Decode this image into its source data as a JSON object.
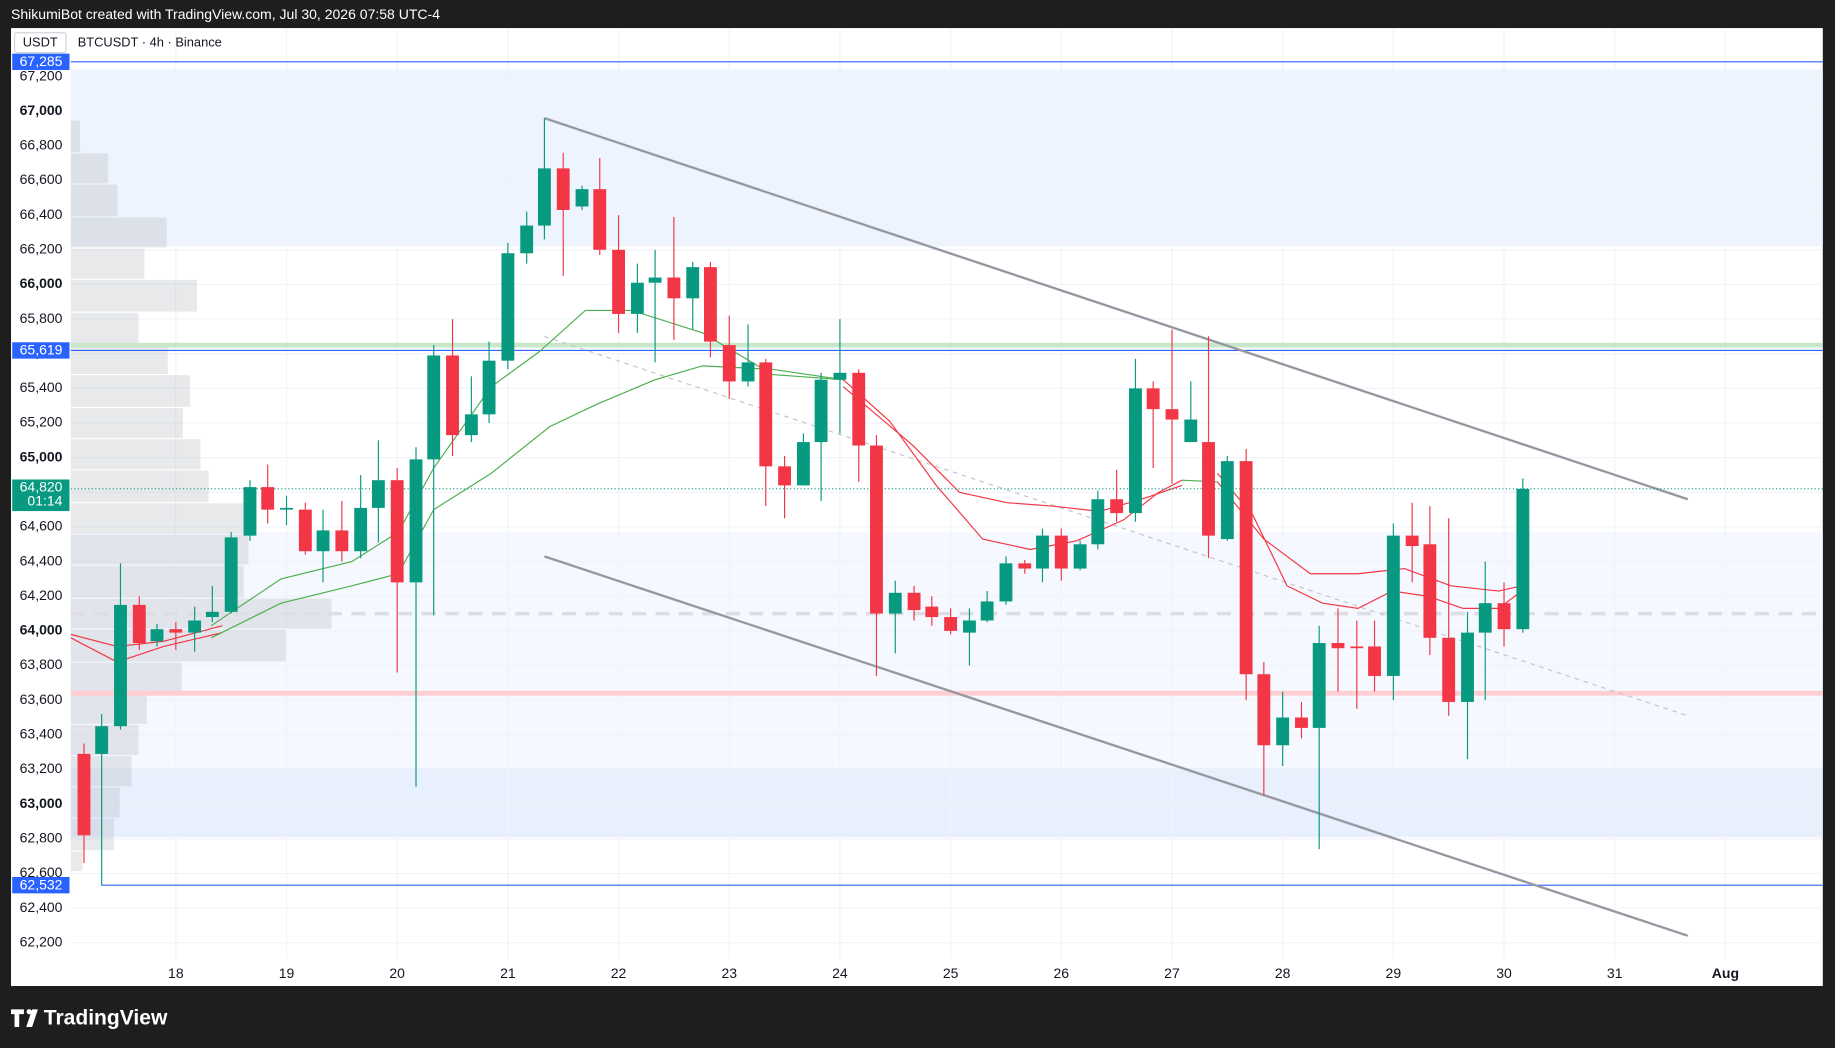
{
  "watermark": "ShikumiBot created with TradingView.com, Jul 30, 2026 07:58 UTC-4",
  "brand": "TradingView",
  "chart_data": {
    "type": "candlestick",
    "title": "BTCUSDT · 4h · Binance",
    "currency": "USDT",
    "up_color": "#089981",
    "down_color": "#f23645",
    "grid": true,
    "xlim": [
      17.05,
      32.88
    ],
    "ylim": [
      61950,
      67480
    ],
    "xticks": [
      18,
      19,
      20,
      21,
      22,
      23,
      24,
      25,
      26,
      27,
      28,
      29,
      30,
      31,
      {
        "value": 32,
        "label": "Aug"
      }
    ],
    "yticks": [
      {
        "value": 62200,
        "label": "62,200"
      },
      {
        "value": 62400,
        "label": "62,400"
      },
      {
        "value": 62600,
        "label": "62,600"
      },
      {
        "value": 62800,
        "label": "62,800"
      },
      {
        "value": 63000,
        "label": "63,000"
      },
      {
        "value": 63200,
        "label": "63,200"
      },
      {
        "value": 63400,
        "label": "63,400"
      },
      {
        "value": 63600,
        "label": "63,600"
      },
      {
        "value": 63800,
        "label": "63,800"
      },
      {
        "value": 64000,
        "label": "64,000"
      },
      {
        "value": 64200,
        "label": "64,200"
      },
      {
        "value": 64400,
        "label": "64,400"
      },
      {
        "value": 64600,
        "label": "64,600"
      },
      {
        "value": 64800,
        "label": "64,800"
      },
      {
        "value": 65000,
        "label": "65,000"
      },
      {
        "value": 65200,
        "label": "65,200"
      },
      {
        "value": 65400,
        "label": "65,400"
      },
      {
        "value": 65600,
        "label": "65,600"
      },
      {
        "value": 65800,
        "label": "65,800"
      },
      {
        "value": 66000,
        "label": "66,000"
      },
      {
        "value": 66200,
        "label": "66,200"
      },
      {
        "value": 66400,
        "label": "66,400"
      },
      {
        "value": 66600,
        "label": "66,600"
      },
      {
        "value": 66800,
        "label": "66,800"
      },
      {
        "value": 67000,
        "label": "67,000"
      },
      {
        "value": 67200,
        "label": "67,200"
      }
    ],
    "x": [
      17.17,
      17.33,
      17.5,
      17.67,
      17.83,
      18,
      18.17,
      18.33,
      18.5,
      18.67,
      18.83,
      19,
      19.17,
      19.33,
      19.5,
      19.67,
      19.83,
      20,
      20.17,
      20.33,
      20.5,
      20.67,
      20.83,
      21,
      21.17,
      21.33,
      21.5,
      21.67,
      21.83,
      22,
      22.17,
      22.33,
      22.5,
      22.67,
      22.83,
      23,
      23.17,
      23.33,
      23.5,
      23.67,
      23.83,
      24,
      24.17,
      24.33,
      24.5,
      24.67,
      24.83,
      25,
      25.17,
      25.33,
      25.5,
      25.67,
      25.83,
      26,
      26.17,
      26.33,
      26.5,
      26.67,
      26.83,
      27,
      27.17,
      27.33,
      27.5,
      27.67,
      27.83,
      28,
      28.17,
      28.33,
      28.5,
      28.67,
      28.83,
      29,
      29.17,
      29.33,
      29.5,
      29.67,
      29.83,
      30,
      30.17
    ],
    "open": [
      63290,
      63290,
      63450,
      64150,
      63940,
      64010,
      63990,
      64080,
      64110,
      64550,
      64830,
      64700,
      64700,
      64460,
      64580,
      64460,
      64710,
      64870,
      64280,
      64990,
      65590,
      65130,
      65250,
      65560,
      66180,
      66340,
      66670,
      66450,
      66550,
      66200,
      65830,
      66010,
      66040,
      65920,
      66100,
      65650,
      65440,
      65550,
      64950,
      64840,
      65090,
      65450,
      65490,
      65070,
      64100,
      64220,
      64140,
      64080,
      63990,
      64060,
      64170,
      64390,
      64360,
      64550,
      64360,
      64500,
      64760,
      64680,
      65400,
      65280,
      65090,
      65090,
      64530,
      64980,
      63750,
      63340,
      63500,
      63440,
      63930,
      63910,
      63910,
      63740,
      64550,
      64500,
      63960,
      63590,
      63990,
      64160,
      64010
    ],
    "high": [
      63350,
      63520,
      64390,
      64200,
      64040,
      64050,
      64140,
      64260,
      64570,
      64870,
      64960,
      64780,
      64740,
      64700,
      64750,
      64900,
      65100,
      64940,
      65060,
      65650,
      65800,
      65470,
      65670,
      66240,
      66420,
      66960,
      66760,
      66570,
      66730,
      66400,
      66120,
      66200,
      66390,
      66130,
      66130,
      65820,
      65770,
      65570,
      65010,
      65140,
      65490,
      65800,
      65510,
      65130,
      64290,
      64260,
      64200,
      64130,
      64130,
      64230,
      64430,
      64410,
      64590,
      64590,
      64520,
      64810,
      64930,
      65570,
      65440,
      65740,
      65440,
      65700,
      65010,
      65050,
      63820,
      63650,
      63590,
      64030,
      64130,
      64060,
      64060,
      64620,
      64740,
      64720,
      64650,
      64110,
      64400,
      64280,
      64880
    ],
    "low": [
      62660,
      62530,
      63430,
      63890,
      63910,
      63890,
      63880,
      64050,
      64100,
      64520,
      64620,
      64610,
      64440,
      64280,
      64400,
      64420,
      64510,
      63760,
      63100,
      64090,
      65010,
      65090,
      65200,
      65510,
      66120,
      66260,
      66050,
      66430,
      66170,
      65720,
      65720,
      65550,
      65680,
      65740,
      65580,
      65340,
      65410,
      64720,
      64650,
      64860,
      64750,
      65140,
      64860,
      63740,
      63870,
      64060,
      64030,
      63980,
      63800,
      64050,
      64150,
      64330,
      64280,
      64290,
      64350,
      64470,
      64630,
      64630,
      64940,
      64850,
      65090,
      64420,
      64520,
      63600,
      63050,
      63220,
      63380,
      62740,
      63650,
      63550,
      63650,
      63600,
      64280,
      63860,
      63510,
      63260,
      63600,
      63910,
      63990
    ],
    "close": [
      62820,
      63450,
      64150,
      63930,
      64010,
      63990,
      64060,
      64110,
      64540,
      64830,
      64700,
      64710,
      64460,
      64580,
      64460,
      64710,
      64870,
      64280,
      64990,
      65590,
      65130,
      65250,
      65560,
      66180,
      66340,
      66670,
      66430,
      66550,
      66200,
      65830,
      66010,
      66040,
      65920,
      66100,
      65670,
      65440,
      65550,
      64950,
      64840,
      65090,
      65450,
      65490,
      65070,
      64100,
      64220,
      64120,
      64080,
      64000,
      64060,
      64170,
      64390,
      64360,
      64550,
      64360,
      64500,
      64760,
      64680,
      65400,
      65280,
      65220,
      65220,
      64550,
      64980,
      63750,
      63340,
      63500,
      63440,
      63930,
      63900,
      63900,
      63740,
      64550,
      64490,
      63960,
      63590,
      63990,
      64160,
      64010,
      64820
    ],
    "zones": [
      {
        "y": [
          66220,
          67240
        ],
        "color": "#eef4fd"
      },
      {
        "y": [
          63210,
          64570
        ],
        "color": "#f5f8fe"
      },
      {
        "y": [
          62810,
          63210
        ],
        "color": "#e8f0fd"
      }
    ],
    "volume_profile": {
      "color": "#b2b5be",
      "bins": [
        62610,
        62730,
        62920,
        63100,
        63280,
        63460,
        63640,
        63820,
        64010,
        64190,
        64380,
        64560,
        64740,
        64930,
        65110,
        65290,
        65480,
        65660,
        65840,
        66030,
        66210,
        66390,
        66580,
        66760,
        66950
      ],
      "values": [
        10,
        37,
        42,
        52,
        58,
        65,
        95,
        184,
        223,
        148,
        152,
        150,
        118,
        111,
        96,
        102,
        83,
        58,
        108,
        63,
        82,
        40,
        32,
        8
      ]
    },
    "levels": [
      {
        "value": 67285,
        "label": "67,285",
        "color": "#2962ff",
        "width": 1
      },
      {
        "value": 65619,
        "label": "65,619",
        "color": "#2962ff",
        "width": 1
      },
      {
        "value": 62532,
        "label": "62,532",
        "color": "#2962ff",
        "width": 1,
        "x_start": 17.33
      },
      {
        "value": 65650,
        "color": "#c8e6c9",
        "width": 4
      },
      {
        "value": 63640,
        "color": "#ffcdd2",
        "width": 4
      },
      {
        "value": 64100,
        "color": "#dcdee3",
        "width": 3,
        "dashed": true
      }
    ],
    "last_price": {
      "value": 64820,
      "label": "64,820",
      "countdown": "01:14",
      "color": "#089981"
    },
    "trend_lines": [
      {
        "x": [
          21.33,
          31.66
        ],
        "y": [
          66960,
          64760
        ],
        "color": "#9598a1"
      },
      {
        "x": [
          21.33,
          31.66
        ],
        "y": [
          64430,
          62240
        ],
        "color": "#9598a1"
      },
      {
        "x": [
          21.33,
          31.66
        ],
        "y": [
          65700,
          63510
        ],
        "color": "#c3c5cb",
        "dashed": true
      }
    ],
    "overlays": [
      {
        "color": "#f23645",
        "x": [
          17.05,
          17.47,
          17.89,
          18.42
        ],
        "values": [
          63980,
          63910,
          63940,
          64030
        ]
      },
      {
        "color": "#f23645",
        "x": [
          17.05,
          17.47,
          17.89,
          18.42
        ],
        "values": [
          63960,
          63820,
          63910,
          63990
        ]
      },
      {
        "color": "#4caf50",
        "x": [
          18.32,
          18.95,
          19.59,
          20.01,
          20.33,
          20.85,
          21.28,
          21.7,
          22.12,
          22.76,
          23.39,
          24.03
        ],
        "values": [
          64030,
          64300,
          64400,
          64570,
          64940,
          65410,
          65610,
          65850,
          65850,
          65720,
          65480,
          65450
        ]
      },
      {
        "color": "#4caf50",
        "x": [
          18.32,
          18.95,
          19.59,
          20.01,
          20.33,
          20.85,
          21.38,
          21.81,
          22.33,
          22.76,
          23.39,
          24.03
        ],
        "values": [
          63960,
          64160,
          64260,
          64330,
          64700,
          64910,
          65180,
          65310,
          65450,
          65530,
          65510,
          65450
        ]
      },
      {
        "color": "#f23645",
        "x": [
          24.03,
          24.45,
          24.87,
          25.29,
          25.72,
          26.14,
          26.56,
          26.88,
          27.09
        ],
        "values": [
          65450,
          65210,
          64840,
          64530,
          64470,
          64520,
          64640,
          64800,
          64870
        ]
      },
      {
        "color": "#f23645",
        "x": [
          24.03,
          24.66,
          25.08,
          25.51,
          25.93,
          26.35,
          26.77,
          27.09
        ],
        "values": [
          65410,
          65070,
          64800,
          64740,
          64720,
          64690,
          64770,
          64840
        ]
      },
      {
        "color": "#4caf50",
        "x": [
          27.09,
          27.41
        ],
        "values": [
          64870,
          64860
        ]
      },
      {
        "color": "#f23645",
        "x": [
          27.41,
          27.73,
          28.04,
          28.36,
          28.68,
          28.99,
          29.31,
          29.63,
          29.95,
          30.16
        ],
        "values": [
          64910,
          64670,
          64260,
          64160,
          64130,
          64230,
          64200,
          64130,
          64130,
          64230
        ]
      },
      {
        "color": "#f23645",
        "x": [
          27.41,
          27.83,
          28.25,
          28.68,
          29.1,
          29.52,
          29.95,
          30.16
        ],
        "values": [
          64860,
          64530,
          64330,
          64330,
          64360,
          64260,
          64230,
          64260
        ]
      }
    ]
  }
}
